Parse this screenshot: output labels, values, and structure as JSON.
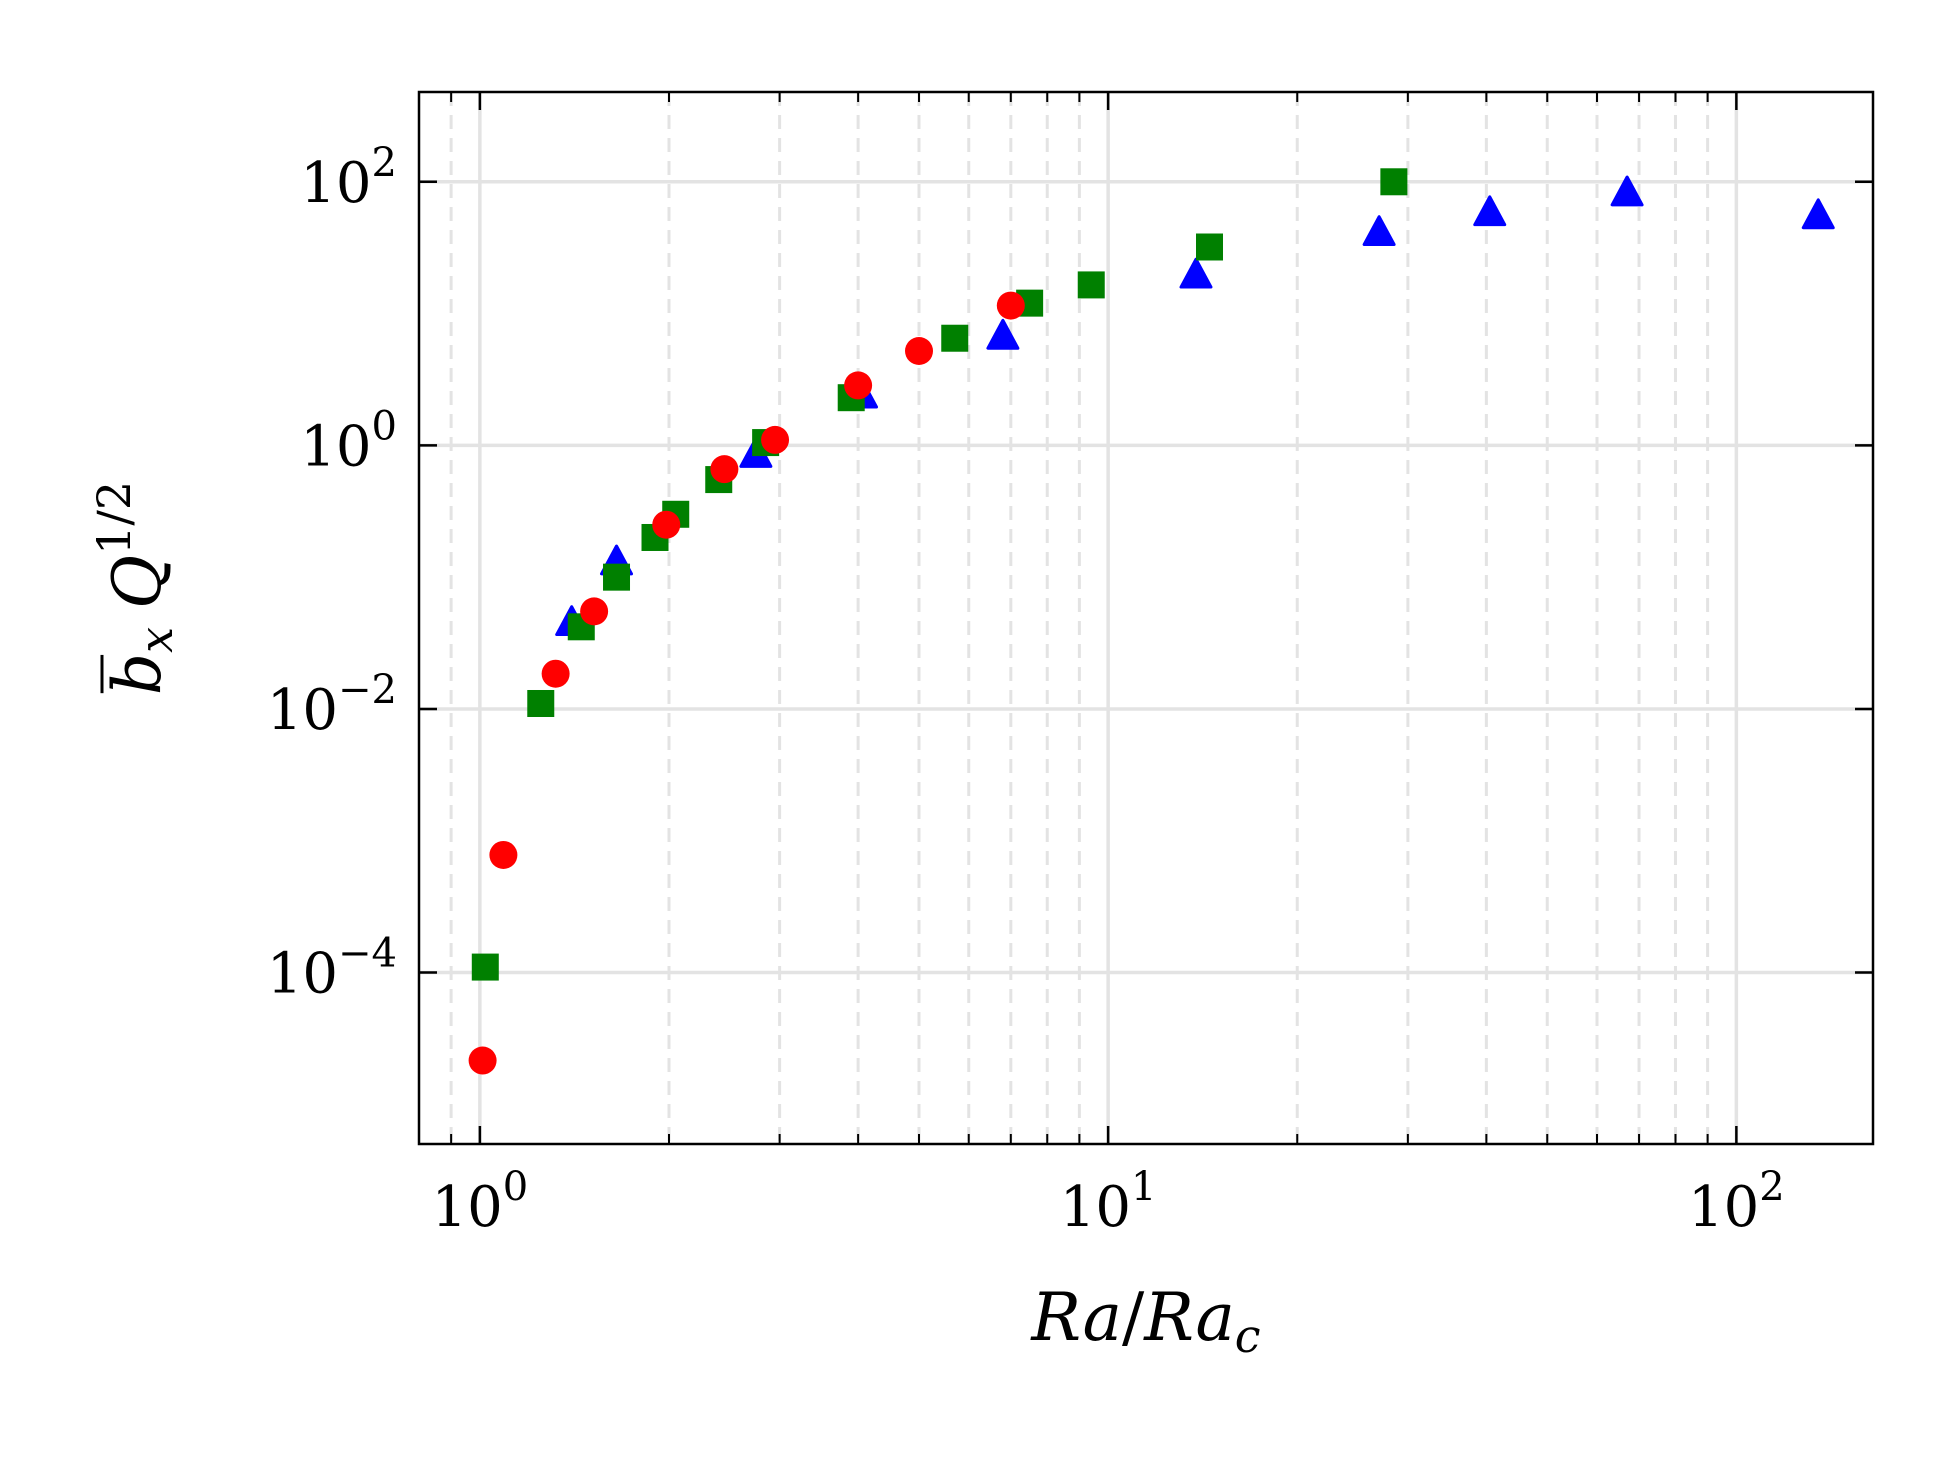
{
  "chart_data": {
    "type": "scatter",
    "title": "",
    "xlabel": "Ra/Ra_c",
    "xlabel_parts": {
      "numer": "Ra",
      "slash": "/",
      "denom_base": "Ra",
      "denom_sub": "c"
    },
    "ylabel": "b̄_x Q^{1/2}",
    "ylabel_parts": {
      "base": "b",
      "sub": "x",
      "q": "Q",
      "sup": "1/2"
    },
    "xscale": "log",
    "yscale": "log",
    "xlim": [
      0.8,
      165
    ],
    "ylim": [
      5e-06,
      480
    ],
    "grid": true,
    "x_major_ticks": [
      1,
      10,
      100
    ],
    "x_tick_labels": [
      {
        "base": "10",
        "exp": "0"
      },
      {
        "base": "10",
        "exp": "1"
      },
      {
        "base": "10",
        "exp": "2"
      }
    ],
    "y_major_ticks": [
      0.0001,
      0.01,
      1,
      100
    ],
    "y_tick_labels": [
      {
        "base": "10",
        "exp": "−4"
      },
      {
        "base": "10",
        "exp": "−2"
      },
      {
        "base": "10",
        "exp": "0"
      },
      {
        "base": "10",
        "exp": "2"
      }
    ],
    "legend": "none",
    "series": [
      {
        "name": "triangles",
        "marker": "triangle",
        "color": "#0000ff",
        "x": [
          1.4,
          1.65,
          2.75,
          4.05,
          6.8,
          13.8,
          27.0,
          40.5,
          67.0,
          135.0
        ],
        "y": [
          0.045,
          0.13,
          0.85,
          2.4,
          6.7,
          19.5,
          41.0,
          58.0,
          82.0,
          55.0
        ]
      },
      {
        "name": "squares",
        "marker": "square",
        "color": "#008000",
        "x": [
          1.02,
          1.25,
          1.45,
          1.65,
          1.9,
          2.05,
          2.4,
          2.85,
          3.9,
          5.7,
          7.5,
          9.4,
          14.5,
          28.5
        ],
        "y": [
          0.00011,
          0.011,
          0.042,
          0.1,
          0.2,
          0.3,
          0.55,
          1.05,
          2.3,
          6.5,
          12.0,
          16.5,
          32.0,
          100.0
        ]
      },
      {
        "name": "circles",
        "marker": "circle",
        "color": "#ff0000",
        "x": [
          1.01,
          1.09,
          1.32,
          1.52,
          1.98,
          2.45,
          2.95,
          4.0,
          5.0,
          7.0
        ],
        "y": [
          2.15e-05,
          0.00078,
          0.0185,
          0.055,
          0.25,
          0.66,
          1.1,
          2.85,
          5.2,
          11.5
        ]
      }
    ]
  }
}
